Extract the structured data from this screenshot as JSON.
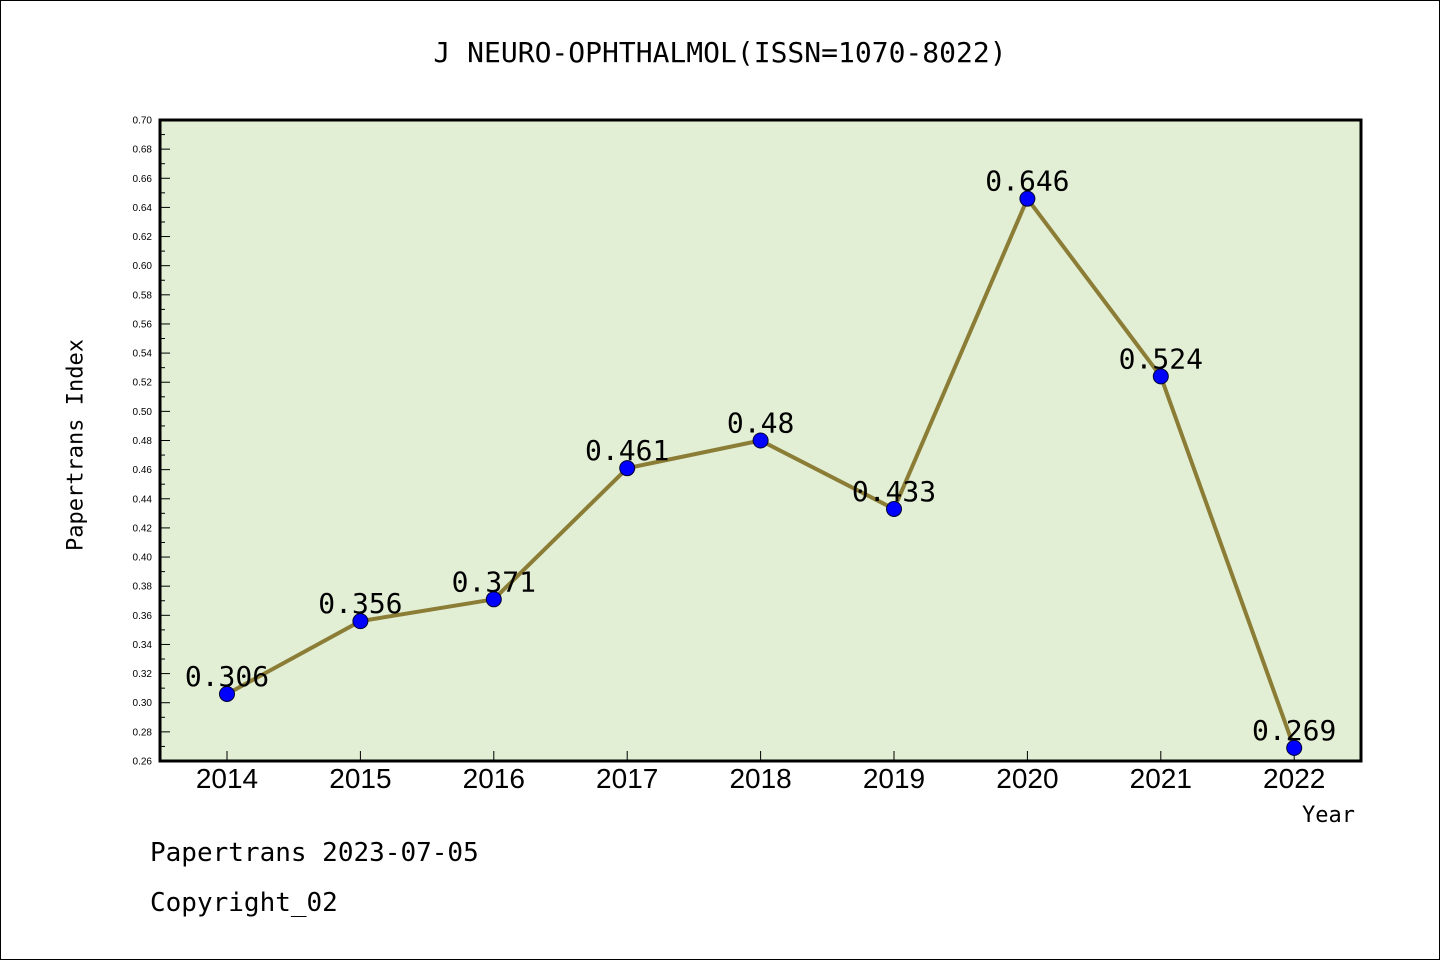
{
  "chart_data": {
    "type": "line",
    "title": "J NEURO-OPHTHALMOL(ISSN=1070-8022)",
    "xlabel": "Year",
    "ylabel": "Papertrans Index",
    "categories": [
      "2014",
      "2015",
      "2016",
      "2017",
      "2018",
      "2019",
      "2020",
      "2021",
      "2022"
    ],
    "values": [
      0.306,
      0.356,
      0.371,
      0.461,
      0.48,
      0.433,
      0.646,
      0.524,
      0.269
    ],
    "data_labels": [
      "0.306",
      "0.356",
      "0.371",
      "0.461",
      "0.48",
      "0.433",
      "0.646",
      "0.524",
      "0.269"
    ],
    "ylim": [
      0.26,
      0.7
    ],
    "yticks": [
      "0.26",
      "0.28",
      "0.30",
      "0.32",
      "0.34",
      "0.36",
      "0.38",
      "0.40",
      "0.42",
      "0.44",
      "0.46",
      "0.48",
      "0.50",
      "0.52",
      "0.54",
      "0.56",
      "0.58",
      "0.60",
      "0.62",
      "0.64",
      "0.66",
      "0.68",
      "0.70"
    ],
    "grid": false,
    "colors": {
      "plot_background": "#e2efd5",
      "line": "#8b7d35",
      "marker": "#0000ff"
    }
  },
  "footer": {
    "line1": "Papertrans 2023-07-05",
    "line2": "Copyright_02"
  }
}
